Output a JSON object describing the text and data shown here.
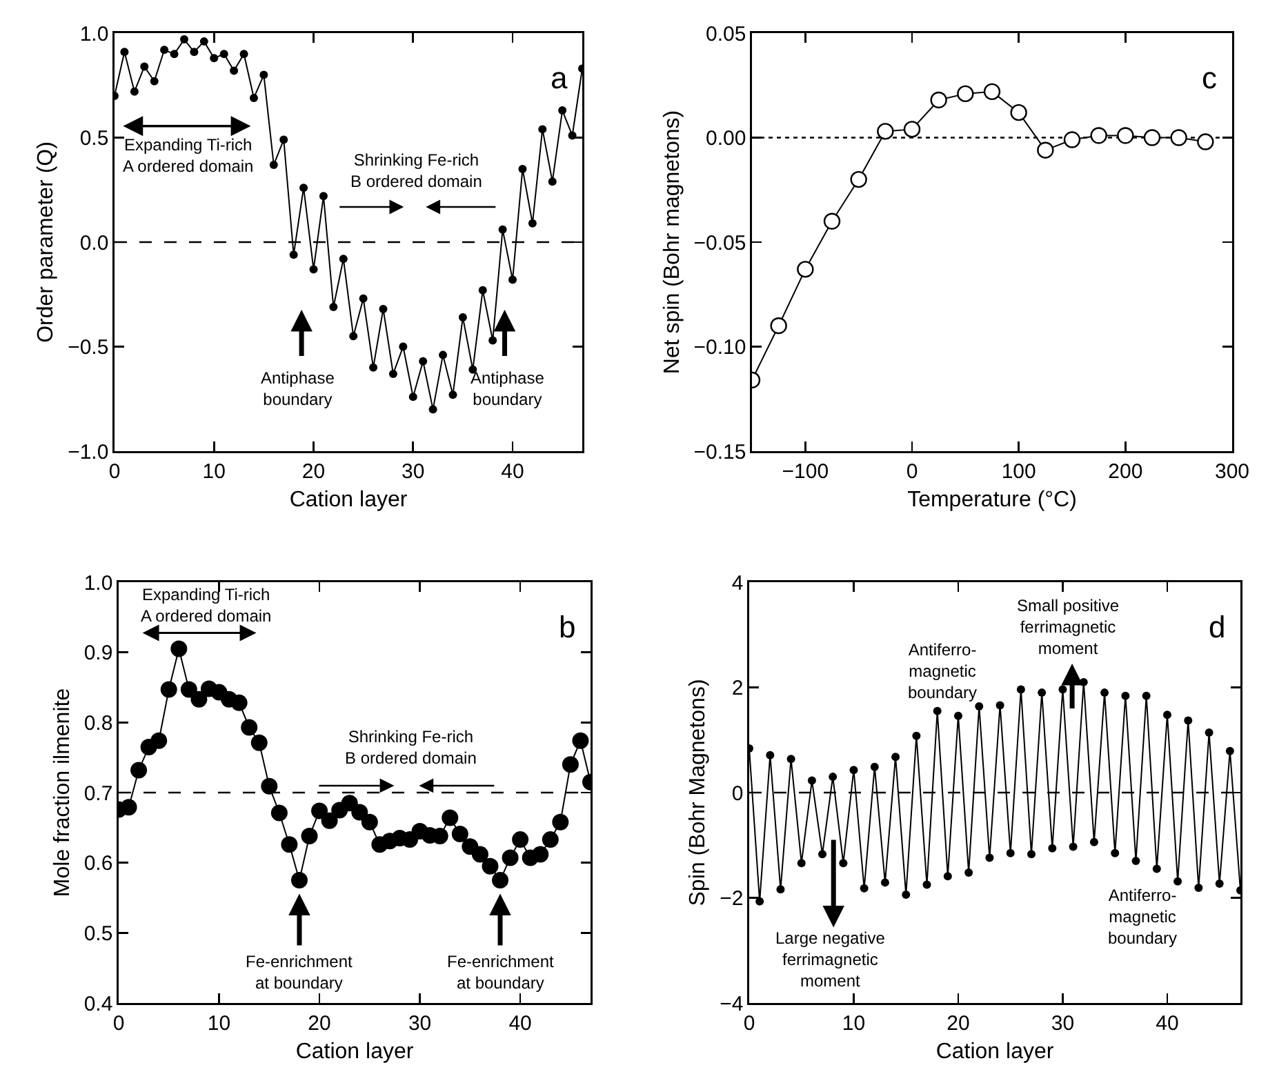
{
  "chart_data": [
    {
      "type": "line",
      "xlabel": "Cation layer",
      "ylabel": "Order parameter (Q)",
      "x": [
        0,
        1,
        2,
        3,
        4,
        5,
        6,
        7,
        8,
        9,
        10,
        11,
        12,
        13,
        14,
        15,
        16,
        17,
        18,
        19,
        20,
        21,
        22,
        23,
        24,
        25,
        26,
        27,
        28,
        29,
        30,
        31,
        32,
        33,
        34,
        35,
        36,
        37,
        38,
        39,
        40,
        41,
        42,
        43,
        44,
        45,
        46,
        47
      ],
      "series": [
        {
          "color": "#000000",
          "values": [
            0.7,
            0.91,
            0.72,
            0.84,
            0.77,
            0.92,
            0.9,
            0.97,
            0.91,
            0.96,
            0.88,
            0.9,
            0.82,
            0.9,
            0.69,
            0.8,
            0.37,
            0.49,
            -0.06,
            0.26,
            -0.13,
            0.22,
            -0.31,
            -0.08,
            -0.45,
            -0.27,
            -0.6,
            -0.32,
            -0.63,
            -0.5,
            -0.74,
            -0.57,
            -0.8,
            -0.54,
            -0.73,
            -0.36,
            -0.61,
            -0.23,
            -0.47,
            0.06,
            -0.18,
            0.35,
            0.09,
            0.54,
            0.29,
            0.63,
            0.51,
            0.83
          ]
        }
      ],
      "xlim": [
        0,
        47
      ],
      "xticks": [
        0,
        10,
        20,
        30,
        40
      ],
      "ylim": [
        -1,
        1
      ],
      "yticks": [
        {
          "value": -1,
          "label": "−1.0"
        },
        {
          "value": -0.5,
          "label": "−0.5"
        },
        {
          "value": 0,
          "label": "0.0"
        },
        {
          "value": 0.5,
          "label": "0.5"
        },
        {
          "value": 1,
          "label": "1.0"
        }
      ],
      "grid": false,
      "marker": "circle",
      "line_style": "solid",
      "ref_lines": [
        {
          "axis": "y",
          "value": 0,
          "color": "#000000",
          "line_style": "dashed"
        }
      ],
      "annotations": [
        "a",
        "Expanding Ti-rich\nA ordered domain",
        "Shrinking Fe-rich\nB ordered domain",
        "Antiphase\nboundary",
        "Antiphase\nboundary"
      ]
    },
    {
      "type": "line",
      "xlabel": "Temperature (°C)",
      "ylabel": "Net spin (Bohr magnetons)",
      "x": [
        -150,
        -125,
        -100,
        -75,
        -50,
        -25,
        0,
        25,
        50,
        75,
        100,
        125,
        150,
        175,
        200,
        225,
        250,
        275
      ],
      "series": [
        {
          "color": "#000000",
          "values": [
            -0.116,
            -0.09,
            -0.063,
            -0.04,
            -0.02,
            0.003,
            0.004,
            0.018,
            0.021,
            0.022,
            0.012,
            -0.006,
            -0.001,
            0.001,
            0.001,
            0,
            0,
            -0.002
          ]
        }
      ],
      "xlim": [
        -150,
        300
      ],
      "xticks": [
        {
          "value": -100,
          "label": "−100"
        },
        0,
        100,
        200,
        300
      ],
      "ylim": [
        -0.15,
        0.05
      ],
      "yticks": [
        {
          "value": -0.15,
          "label": "−0.15"
        },
        {
          "value": -0.1,
          "label": "−0.10"
        },
        {
          "value": -0.05,
          "label": "−0.05"
        },
        {
          "value": 0,
          "label": "0.00"
        },
        {
          "value": 0.05,
          "label": "0.05"
        }
      ],
      "grid": false,
      "marker": "circle",
      "line_style": "solid",
      "ref_lines": [
        {
          "axis": "y",
          "value": 0,
          "color": "#000000",
          "line_style": "dotted"
        }
      ],
      "annotations": [
        "c"
      ]
    },
    {
      "type": "line",
      "xlabel": "Cation layer",
      "ylabel": "Mole fraction ilmenite",
      "x": [
        0,
        1,
        2,
        3,
        4,
        5,
        6,
        7,
        8,
        9,
        10,
        11,
        12,
        13,
        14,
        15,
        16,
        17,
        18,
        19,
        20,
        21,
        22,
        23,
        24,
        25,
        26,
        27,
        28,
        29,
        30,
        31,
        32,
        33,
        34,
        35,
        36,
        37,
        38,
        39,
        40,
        41,
        42,
        43,
        44,
        45,
        46,
        47
      ],
      "series": [
        {
          "color": "#000000",
          "values": [
            0.676,
            0.679,
            0.732,
            0.765,
            0.774,
            0.847,
            0.905,
            0.847,
            0.833,
            0.848,
            0.843,
            0.833,
            0.828,
            0.793,
            0.771,
            0.709,
            0.671,
            0.626,
            0.575,
            0.638,
            0.674,
            0.66,
            0.675,
            0.685,
            0.672,
            0.658,
            0.626,
            0.631,
            0.635,
            0.633,
            0.645,
            0.639,
            0.638,
            0.664,
            0.641,
            0.623,
            0.612,
            0.595,
            0.575,
            0.607,
            0.633,
            0.607,
            0.612,
            0.633,
            0.658,
            0.74,
            0.774,
            0.715
          ]
        }
      ],
      "xlim": [
        0,
        47
      ],
      "xticks": [
        0,
        10,
        20,
        30,
        40
      ],
      "ylim": [
        0.4,
        1.0
      ],
      "yticks": [
        0.4,
        0.5,
        0.6,
        0.7,
        0.8,
        0.9,
        {
          "value": 1,
          "label": "1.0"
        }
      ],
      "grid": false,
      "marker": "circle",
      "line_style": "solid",
      "ref_lines": [
        {
          "axis": "y",
          "value": 0.7,
          "color": "#000000",
          "line_style": "dashed"
        }
      ],
      "annotations": [
        "b",
        "Expanding Ti-rich\nA ordered domain",
        "Shrinking Fe-rich\nB ordered domain",
        {
          "text": "Fe-enrichment\nat boundary",
          "x": 18,
          "y": 0.556
        },
        {
          "text": "Fe-enrichment\nat boundary",
          "x": 38,
          "y": 0.556
        }
      ]
    },
    {
      "type": "line",
      "xlabel": "Cation layer",
      "ylabel": "Spin (Bohr Magnetons)",
      "x": [
        0,
        1,
        2,
        3,
        4,
        5,
        6,
        7,
        8,
        9,
        10,
        11,
        12,
        13,
        14,
        15,
        16,
        17,
        18,
        19,
        20,
        21,
        22,
        23,
        24,
        25,
        26,
        27,
        28,
        29,
        30,
        31,
        32,
        33,
        34,
        35,
        36,
        37,
        38,
        39,
        40,
        41,
        42,
        43,
        44,
        45,
        46,
        47
      ],
      "series": [
        {
          "color": "#000000",
          "values": [
            0.84,
            -2.07,
            0.71,
            -1.84,
            0.64,
            -1.34,
            0.23,
            -1.17,
            0.3,
            -1.34,
            0.43,
            -1.82,
            0.49,
            -1.71,
            0.68,
            -1.94,
            1.08,
            -1.75,
            1.55,
            -1.59,
            1.46,
            -1.52,
            1.64,
            -1.24,
            1.66,
            -1.15,
            1.96,
            -1.17,
            1.9,
            -1.06,
            1.96,
            -1.03,
            2.1,
            -0.94,
            1.9,
            -1.15,
            1.84,
            -1.3,
            1.84,
            -1.45,
            1.48,
            -1.69,
            1.37,
            -1.81,
            1.14,
            -1.73,
            0.79,
            -1.86
          ]
        }
      ],
      "xlim": [
        0,
        47
      ],
      "xticks": [
        0,
        10,
        20,
        30,
        40
      ],
      "ylim": [
        -4,
        4
      ],
      "yticks": [
        {
          "value": -4,
          "label": "−4"
        },
        {
          "value": -2,
          "label": "−2"
        },
        0,
        2,
        4
      ],
      "grid": false,
      "marker": "circle",
      "line_style": "solid",
      "ref_lines": [
        {
          "axis": "y",
          "value": 0,
          "color": "#000000",
          "line_style": "dashed"
        }
      ],
      "annotations": [
        "d",
        "Antiferro-\nmagnetic\nboundary",
        "Small positive\nferrimagnetic\nmoment",
        "Large negative\nferrimagnetic\nmoment",
        "Antiferro-\nmagnetic\nboundary"
      ]
    }
  ]
}
